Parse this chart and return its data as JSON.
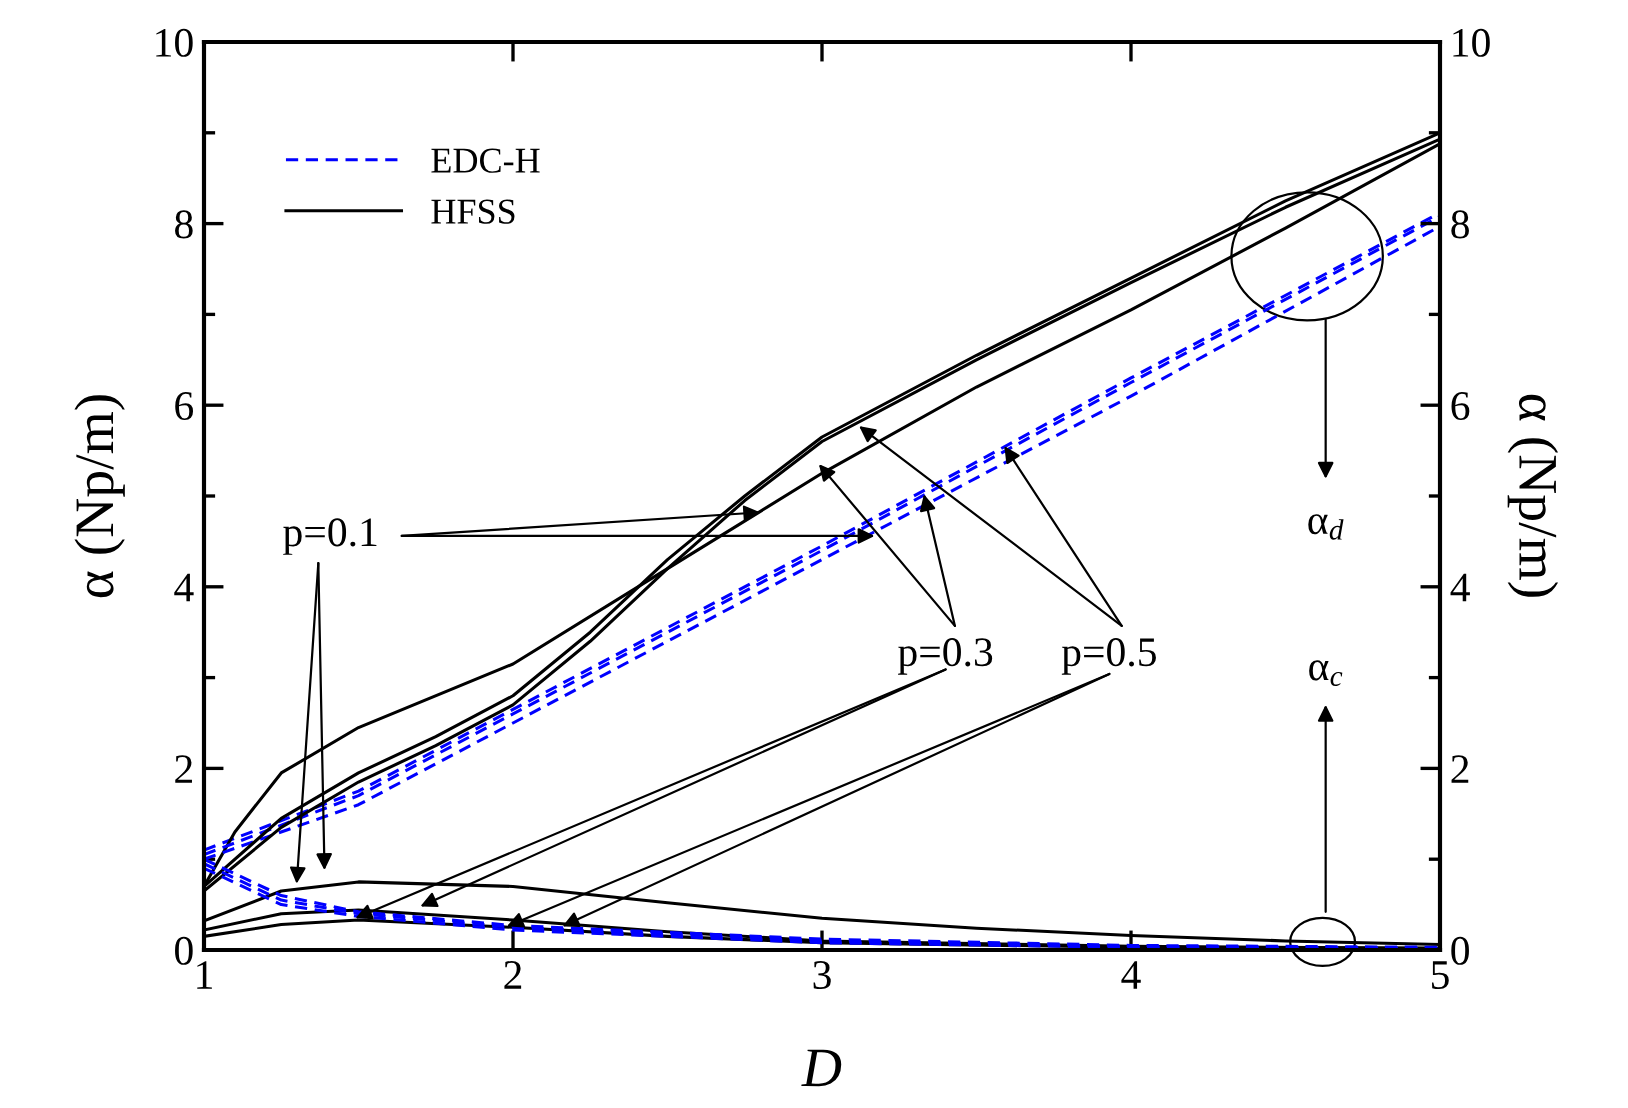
{
  "chart_data": {
    "type": "line",
    "xlabel": "D",
    "ylabel": "α (Np/m)",
    "y2label": "α (Np/m)",
    "xlim": [
      1,
      5
    ],
    "xticks": [
      1,
      2,
      3,
      4,
      5
    ],
    "ylim": [
      0,
      10
    ],
    "yticks": [
      0,
      2,
      4,
      6,
      8,
      10
    ],
    "y2lim": [
      0,
      10
    ],
    "y2ticks": [
      0,
      2,
      4,
      6,
      8,
      10
    ],
    "grid": false,
    "legend": "top left",
    "marker": "none",
    "series": [
      {
        "name": "EDC-H",
        "color": "#0000ff",
        "line_style": "dashed",
        "x": [
          1,
          1.5,
          2,
          3,
          4,
          5
        ],
        "values": [
          1.1,
          1.75,
          2.65,
          4.45,
          6.3,
          8.12
        ]
      },
      {
        "name": "HFSS",
        "color": "#000000",
        "line_style": "solid",
        "x": [
          1,
          1.1,
          1.25,
          1.5,
          2,
          2.5,
          3,
          3.5,
          4,
          4.5,
          5
        ],
        "values": [
          0.7,
          1.3,
          1.95,
          2.45,
          3.15,
          4.2,
          5.25,
          6.2,
          7.05,
          7.95,
          8.88
        ]
      },
      {
        "color": "#0000ff",
        "line_style": "dashed",
        "x": [
          1,
          1.5,
          2,
          3,
          4,
          5
        ],
        "values": [
          1.05,
          1.7,
          2.6,
          4.4,
          6.25,
          8.08
        ]
      },
      {
        "color": "#0000ff",
        "line_style": "dashed",
        "x": [
          1,
          1.5,
          2,
          3,
          4,
          5
        ],
        "values": [
          1.0,
          1.6,
          2.5,
          4.3,
          6.1,
          7.97
        ]
      },
      {
        "color": "#000000",
        "line_style": "solid",
        "x": [
          1,
          1.25,
          1.5,
          1.75,
          2,
          2.25,
          2.5,
          2.75,
          3,
          3.5,
          4,
          4.5,
          5
        ],
        "values": [
          0.7,
          1.45,
          1.95,
          2.35,
          2.8,
          3.5,
          4.3,
          5.0,
          5.65,
          6.55,
          7.4,
          8.25,
          9.0
        ]
      },
      {
        "color": "#000000",
        "line_style": "solid",
        "x": [
          1,
          1.25,
          1.5,
          1.75,
          2,
          2.25,
          2.5,
          2.75,
          3,
          3.5,
          4,
          4.5,
          5
        ],
        "values": [
          0.65,
          1.35,
          1.85,
          2.25,
          2.7,
          3.4,
          4.2,
          4.95,
          5.6,
          6.5,
          7.35,
          8.18,
          8.93
        ]
      },
      {
        "color": "#000000",
        "line_style": "solid",
        "x": [
          1,
          1.25,
          1.5,
          2,
          2.5,
          3,
          3.5,
          4,
          4.5,
          5
        ],
        "values": [
          0.32,
          0.65,
          0.75,
          0.7,
          0.52,
          0.35,
          0.24,
          0.16,
          0.1,
          0.06
        ]
      },
      {
        "color": "#000000",
        "line_style": "solid",
        "x": [
          1,
          1.25,
          1.5,
          2,
          2.5,
          3,
          4,
          5
        ],
        "values": [
          0.22,
          0.4,
          0.44,
          0.33,
          0.2,
          0.1,
          0.04,
          0.02
        ]
      },
      {
        "color": "#000000",
        "line_style": "solid",
        "x": [
          1,
          1.25,
          1.5,
          2,
          2.5,
          3,
          4,
          5
        ],
        "values": [
          0.15,
          0.28,
          0.33,
          0.25,
          0.15,
          0.08,
          0.03,
          0.02
        ]
      },
      {
        "color": "#0000ff",
        "line_style": "dashed",
        "x": [
          1,
          1.25,
          1.5,
          2,
          3,
          4,
          5
        ],
        "values": [
          1.0,
          0.6,
          0.42,
          0.27,
          0.12,
          0.05,
          0.03
        ]
      },
      {
        "color": "#0000ff",
        "line_style": "dashed",
        "x": [
          1,
          1.25,
          1.5,
          2,
          3,
          4,
          5
        ],
        "values": [
          0.95,
          0.55,
          0.4,
          0.25,
          0.1,
          0.04,
          0.02
        ]
      },
      {
        "color": "#0000ff",
        "line_style": "dashed",
        "x": [
          1,
          1.25,
          1.5,
          2,
          3,
          4,
          5
        ],
        "values": [
          0.9,
          0.5,
          0.37,
          0.22,
          0.08,
          0.03,
          0.01
        ]
      }
    ],
    "annotations": [
      {
        "text": "p=0.1",
        "x": 2.8,
        "y": 4.82
      },
      {
        "text": "p=0.3",
        "x": 2.99,
        "y": 5.35
      },
      {
        "text": "p=0.5",
        "x": 3.12,
        "y": 5.77
      },
      "α$_{d}$",
      "α$_{c}$"
    ]
  }
}
